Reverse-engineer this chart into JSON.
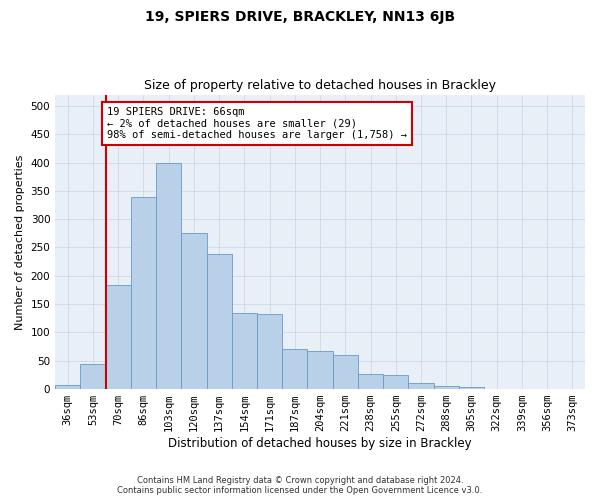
{
  "title": "19, SPIERS DRIVE, BRACKLEY, NN13 6JB",
  "subtitle": "Size of property relative to detached houses in Brackley",
  "xlabel": "Distribution of detached houses by size in Brackley",
  "ylabel": "Number of detached properties",
  "footer_line1": "Contains HM Land Registry data © Crown copyright and database right 2024.",
  "footer_line2": "Contains public sector information licensed under the Open Government Licence v3.0.",
  "categories": [
    "36sqm",
    "53sqm",
    "70sqm",
    "86sqm",
    "103sqm",
    "120sqm",
    "137sqm",
    "154sqm",
    "171sqm",
    "187sqm",
    "204sqm",
    "221sqm",
    "238sqm",
    "255sqm",
    "272sqm",
    "288sqm",
    "305sqm",
    "322sqm",
    "339sqm",
    "356sqm",
    "373sqm"
  ],
  "bar_values": [
    8,
    45,
    183,
    340,
    400,
    275,
    238,
    135,
    133,
    70,
    67,
    60,
    26,
    25,
    11,
    5,
    3,
    1,
    1,
    0,
    0
  ],
  "bar_color": "#b8d0e8",
  "bar_edge_color": "#6699cc",
  "highlight_line_color": "#cc0000",
  "annotation_text": "19 SPIERS DRIVE: 66sqm\n← 2% of detached houses are smaller (29)\n98% of semi-detached houses are larger (1,758) →",
  "annotation_box_color": "#cc0000",
  "annotation_text_color": "#000000",
  "ylim": [
    0,
    520
  ],
  "yticks": [
    0,
    50,
    100,
    150,
    200,
    250,
    300,
    350,
    400,
    450,
    500
  ],
  "background_color": "#ffffff",
  "plot_bg_color": "#e8eff7",
  "grid_color": "#c8d4e0",
  "title_fontsize": 10,
  "subtitle_fontsize": 9,
  "xlabel_fontsize": 8.5,
  "ylabel_fontsize": 8,
  "tick_fontsize": 7.5,
  "annotation_fontsize": 7.5,
  "footer_fontsize": 6
}
